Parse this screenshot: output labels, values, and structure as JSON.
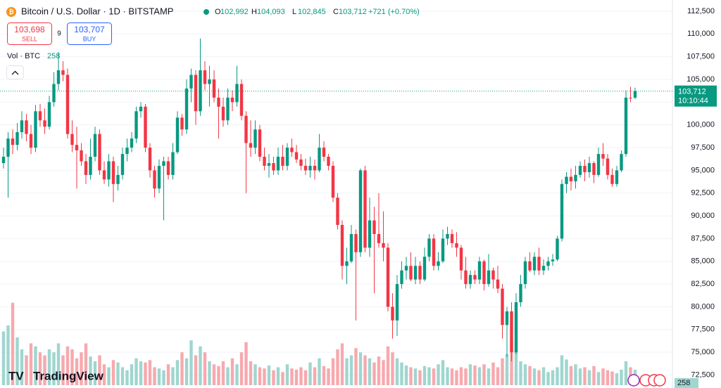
{
  "header": {
    "title": "Bitcoin / U.S. Dollar · 1D · BITSTAMP",
    "ohlc": [
      {
        "key": "O",
        "value": "102,992"
      },
      {
        "key": "H",
        "value": "104,093"
      },
      {
        "key": "L",
        "value": "102,845"
      },
      {
        "key": "C",
        "value": "103,712"
      }
    ],
    "change": "+721 (+0.70%)",
    "sell_price": "103,698",
    "sell": "SELL",
    "spread": "9",
    "buy_price": "103,707",
    "buy": "BUY",
    "volume_label": "Vol · BTC",
    "volume_value": "258"
  },
  "footer": {
    "brand": "TradingView"
  },
  "price_label": {
    "price": "103,712",
    "countdown": "10:10:44"
  },
  "volume_axis_label": "258",
  "chart_data": {
    "type": "candlestick",
    "up_color": "#089981",
    "down_color": "#f23645",
    "volume_up_color": "#9fd6cf",
    "volume_down_color": "#f7a9ae",
    "grid": true,
    "ylim": [
      72000,
      113500
    ],
    "yticks": [
      {
        "value": 72500,
        "label": "72,500"
      },
      {
        "value": 75000,
        "label": "75,000"
      },
      {
        "value": 77500,
        "label": "77,500"
      },
      {
        "value": 80000,
        "label": "80,000"
      },
      {
        "value": 82500,
        "label": "82,500"
      },
      {
        "value": 85000,
        "label": "85,000"
      },
      {
        "value": 87500,
        "label": "87,500"
      },
      {
        "value": 90000,
        "label": "90,000"
      },
      {
        "value": 92500,
        "label": "92,500"
      },
      {
        "value": 95000,
        "label": "95,000"
      },
      {
        "value": 97500,
        "label": "97,500"
      },
      {
        "value": 100000,
        "label": "100,000"
      },
      {
        "value": 102500,
        "label": "102,500"
      },
      {
        "value": 105000,
        "label": "105,000"
      },
      {
        "value": 107500,
        "label": "107,500"
      },
      {
        "value": 110000,
        "label": "110,000"
      },
      {
        "value": 112500,
        "label": "112,500"
      }
    ],
    "open": [
      95800,
      96500,
      98500,
      97800,
      99200,
      100500,
      99000,
      97500,
      101500,
      100500,
      99800,
      102500,
      104500,
      106000,
      105500,
      99000,
      97800,
      97200,
      96000,
      94500,
      96500,
      99000,
      95000,
      94000,
      96000,
      93500,
      94500,
      96800,
      97500,
      98500,
      101500,
      102000,
      97500,
      95000,
      93000,
      95500,
      96000,
      94500,
      97000,
      100800,
      99500,
      104000,
      105500,
      101500,
      106000,
      104500,
      105000,
      103000,
      102000,
      100500,
      103000,
      102500,
      104500,
      101000,
      98000,
      97500,
      99500,
      96500,
      95500,
      95800,
      95000,
      96500,
      95500,
      97500,
      97000,
      96200,
      95500,
      95000,
      95500,
      95000,
      97500,
      96500,
      95500,
      92000,
      89000,
      84500,
      85000,
      88000,
      86000,
      95000,
      86500,
      89500,
      88000,
      87000,
      86500,
      80000,
      78500,
      82500,
      84000,
      84500,
      83000,
      84500,
      83000,
      85500,
      87500,
      84500,
      85000,
      87500,
      88000,
      87000,
      86500,
      84000,
      82500,
      83500,
      83000,
      85000,
      82500,
      84000,
      83000,
      82000,
      78000,
      79500,
      75000,
      80500,
      82500,
      85000,
      84000,
      85500,
      84000,
      84500,
      85000,
      85200,
      87500,
      93500,
      94300,
      93800,
      94500,
      95500,
      94800,
      95800,
      94500,
      96800,
      96300,
      94500,
      93500,
      95000,
      96800,
      103000,
      102992
    ],
    "high": [
      97500,
      99200,
      99500,
      100200,
      101500,
      101200,
      100000,
      102200,
      102300,
      101800,
      103200,
      105800,
      108000,
      107000,
      106200,
      100500,
      99800,
      98000,
      96800,
      98500,
      99800,
      99500,
      96000,
      96800,
      96500,
      95500,
      97500,
      98500,
      99200,
      102000,
      102500,
      102300,
      98000,
      95500,
      96200,
      96500,
      96500,
      98000,
      101500,
      101200,
      105000,
      106200,
      106000,
      109500,
      107000,
      106500,
      106000,
      104000,
      103000,
      104000,
      103800,
      106500,
      105000,
      101500,
      100500,
      100500,
      100000,
      97500,
      96800,
      96500,
      97500,
      97800,
      98000,
      98500,
      97800,
      96800,
      96300,
      96500,
      96200,
      99000,
      98200,
      96800,
      96000,
      92500,
      89500,
      86500,
      89000,
      88500,
      95200,
      95500,
      92000,
      91000,
      92500,
      90500,
      87000,
      81500,
      83500,
      85000,
      85500,
      86000,
      85500,
      85000,
      86500,
      88000,
      88000,
      86000,
      88500,
      88800,
      88500,
      88200,
      86800,
      85500,
      84000,
      84000,
      85500,
      85200,
      85800,
      84300,
      84500,
      82500,
      80000,
      80500,
      81500,
      83500,
      85500,
      86000,
      86000,
      86500,
      85200,
      85500,
      85800,
      87800,
      94000,
      94800,
      95200,
      95500,
      96000,
      96200,
      96500,
      96000,
      97500,
      98000,
      96800,
      95200,
      95500,
      97200,
      103800,
      104200,
      104093
    ],
    "low": [
      95200,
      92000,
      96800,
      97200,
      98500,
      98200,
      96800,
      97000,
      99800,
      99000,
      99500,
      102000,
      103800,
      104800,
      98500,
      97000,
      93000,
      95500,
      93500,
      94000,
      96000,
      94500,
      93500,
      93200,
      91500,
      92800,
      94000,
      96000,
      97000,
      98000,
      100800,
      97000,
      94200,
      92000,
      92500,
      89500,
      94000,
      94000,
      96800,
      98800,
      99000,
      102500,
      100000,
      101000,
      103800,
      102000,
      102500,
      98500,
      99800,
      100000,
      101500,
      102000,
      100500,
      92500,
      96500,
      96800,
      96000,
      95000,
      94200,
      94500,
      94500,
      95000,
      95000,
      96500,
      95800,
      95000,
      94500,
      94200,
      94000,
      94800,
      96000,
      95000,
      91500,
      88500,
      83000,
      82500,
      84800,
      78500,
      85500,
      86000,
      85500,
      81500,
      86500,
      85000,
      79500,
      76500,
      76800,
      82000,
      83000,
      82800,
      82500,
      82500,
      82800,
      85000,
      84000,
      84000,
      84800,
      86800,
      86500,
      85500,
      83000,
      82000,
      82000,
      82500,
      82500,
      81800,
      82200,
      82000,
      81500,
      76500,
      74500,
      74000,
      74800,
      80000,
      82000,
      83800,
      83500,
      83500,
      83500,
      84000,
      84500,
      85000,
      87200,
      92500,
      92800,
      93000,
      94200,
      93800,
      94200,
      93600,
      94300,
      95500,
      94000,
      93200,
      93200,
      94800,
      96500,
      102500,
      102845
    ],
    "close": [
      96500,
      98500,
      97800,
      99200,
      100500,
      99000,
      97500,
      101500,
      100500,
      99800,
      102500,
      104500,
      106000,
      105500,
      99000,
      97800,
      97200,
      96000,
      94500,
      96500,
      99000,
      95000,
      94000,
      96000,
      93500,
      94500,
      96800,
      97500,
      98500,
      101500,
      102000,
      97500,
      95000,
      93000,
      95500,
      96000,
      94500,
      97000,
      100800,
      99500,
      104000,
      105500,
      101500,
      106000,
      104500,
      105000,
      103000,
      102000,
      100500,
      103000,
      102500,
      104500,
      101000,
      98000,
      97500,
      99500,
      96500,
      95500,
      95800,
      95000,
      96500,
      95500,
      97500,
      97000,
      96200,
      95500,
      95000,
      95500,
      95000,
      97500,
      96500,
      95500,
      92000,
      89000,
      84500,
      85000,
      88000,
      86000,
      95000,
      86500,
      89500,
      88000,
      87000,
      86500,
      80000,
      78500,
      82500,
      84000,
      84500,
      83000,
      84500,
      83000,
      85500,
      87500,
      84500,
      85000,
      87500,
      88000,
      87000,
      86500,
      84000,
      82500,
      83500,
      83000,
      85000,
      82500,
      84000,
      83000,
      82000,
      78000,
      79500,
      75000,
      80500,
      82500,
      85000,
      84000,
      85500,
      84000,
      84500,
      85000,
      85200,
      87500,
      93500,
      94300,
      93800,
      94500,
      95500,
      94800,
      95800,
      94500,
      96800,
      96300,
      94500,
      93500,
      95000,
      96800,
      103000,
      102992,
      103712
    ],
    "volume": [
      900,
      1000,
      1380,
      800,
      600,
      500,
      700,
      650,
      550,
      500,
      600,
      550,
      700,
      500,
      650,
      600,
      450,
      550,
      700,
      480,
      400,
      500,
      350,
      300,
      420,
      380,
      300,
      250,
      350,
      450,
      400,
      380,
      420,
      300,
      280,
      250,
      350,
      300,
      420,
      550,
      450,
      750,
      500,
      650,
      550,
      400,
      350,
      320,
      400,
      300,
      450,
      350,
      550,
      720,
      400,
      350,
      300,
      280,
      330,
      250,
      300,
      220,
      350,
      280,
      260,
      300,
      250,
      380,
      300,
      450,
      320,
      280,
      450,
      600,
      700,
      450,
      500,
      620,
      550,
      500,
      450,
      380,
      480,
      420,
      650,
      550,
      450,
      380,
      330,
      300,
      280,
      250,
      320,
      300,
      280,
      350,
      420,
      300,
      280,
      250,
      300,
      280,
      350,
      330,
      300,
      350,
      280,
      380,
      300,
      450,
      520,
      750,
      600,
      400,
      350,
      320,
      280,
      250,
      300,
      220,
      250,
      300,
      500,
      430,
      320,
      350,
      280,
      300,
      250,
      320,
      220,
      280,
      250,
      230,
      200,
      260,
      400,
      300,
      258
    ]
  }
}
